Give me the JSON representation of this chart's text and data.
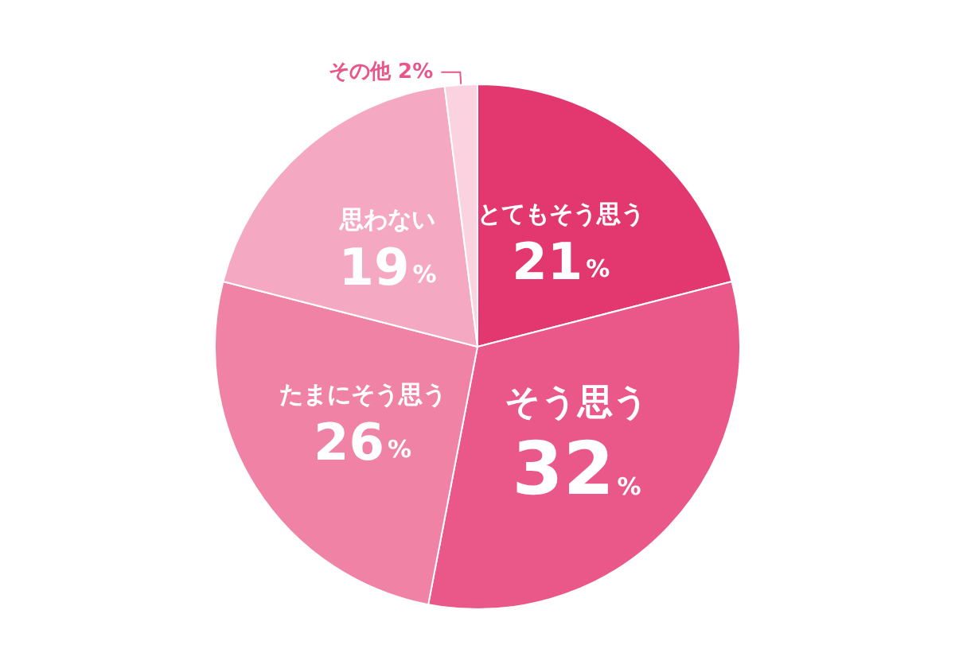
{
  "chart_data": {
    "type": "pie",
    "categories": [
      "とてもそう思う",
      "そう思う",
      "たまにそう思う",
      "思わない",
      "その他"
    ],
    "values": [
      21,
      32,
      26,
      19,
      2
    ],
    "value_labels": [
      "21%",
      "32%",
      "26%",
      "19%",
      "2%"
    ],
    "colors": [
      "#e2376f",
      "#ea588a",
      "#ef82a5",
      "#f5a8c1",
      "#fbd2df"
    ],
    "legend": false
  }
}
